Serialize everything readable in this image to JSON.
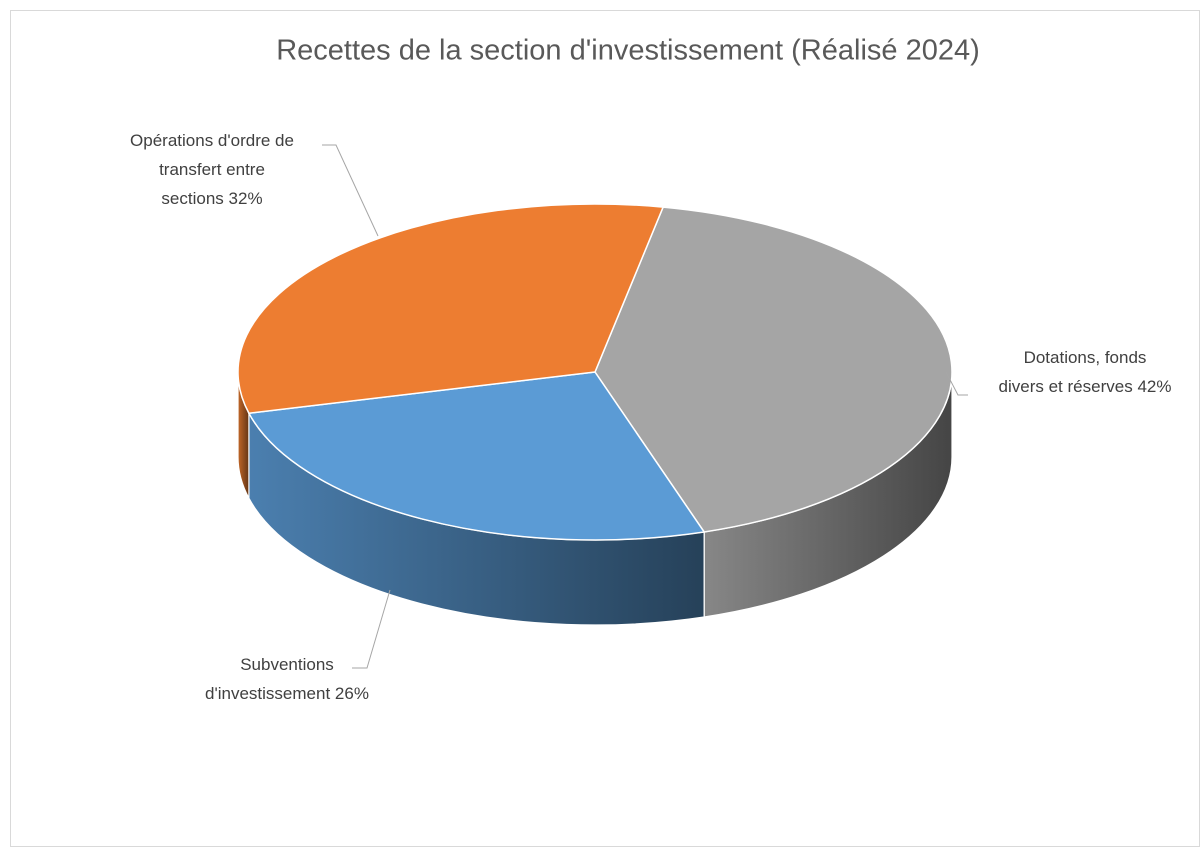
{
  "chart_data": {
    "type": "pie3d",
    "title": "Recettes de la section d'investissement (Réalisé 2024)",
    "categories": [
      "Dotations, fonds divers et réserves",
      "Subventions d'investissement",
      "Opérations d'ordre de transfert entre sections"
    ],
    "values": [
      42,
      26,
      32
    ],
    "value_labels": [
      "42%",
      "26%",
      "32%"
    ],
    "colors": [
      "#a5a5a5",
      "#5b9bd5",
      "#ed7d31"
    ]
  }
}
